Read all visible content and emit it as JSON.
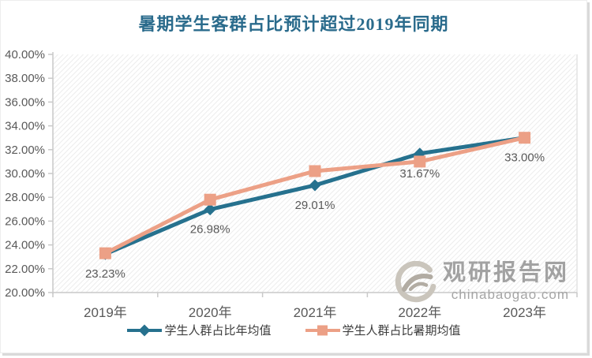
{
  "title": "暑期学生客群占比预计超过2019年同期",
  "watermark": {
    "brand": "观研报告网",
    "domain": "chinabaogao.com"
  },
  "chart_data": {
    "type": "line",
    "title": "暑期学生客群占比预计超过2019年同期",
    "categories": [
      "2019年",
      "2020年",
      "2021年",
      "2022年",
      "2023年"
    ],
    "series": [
      {
        "name": "学生人群占比年均值",
        "color": "#26718E",
        "marker": "diamond",
        "values": [
          23.23,
          26.98,
          29.01,
          31.67,
          33.0
        ],
        "data_labels": [
          "23.23%",
          "26.98%",
          "29.01%",
          "31.67%",
          "33.00%"
        ]
      },
      {
        "name": "学生人群占比暑期均值",
        "color": "#ECA086",
        "marker": "square",
        "values": [
          23.3,
          27.8,
          30.2,
          31.0,
          33.0
        ],
        "data_labels": []
      }
    ],
    "ylim": [
      20,
      40
    ],
    "ytick_step": 2,
    "ytick_suffix": "%",
    "grid": false,
    "legend_position": "bottom",
    "plot_area_hatched": true
  }
}
